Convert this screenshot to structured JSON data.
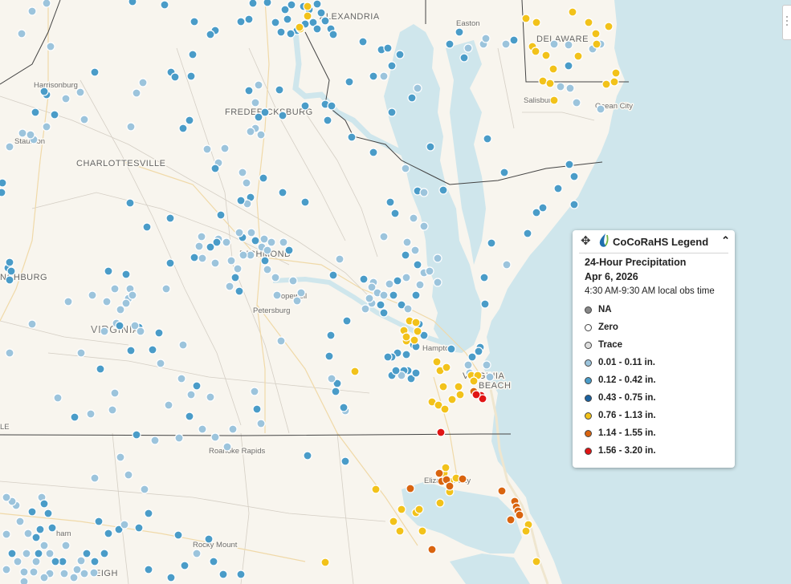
{
  "legend": {
    "title": "CoCoRaHS Legend",
    "subtitle": "24-Hour Precipitation",
    "date": "Apr 6, 2026",
    "obs_time": "4:30 AM-9:30 AM local obs time",
    "items": [
      {
        "label": "NA",
        "color": "#888888"
      },
      {
        "label": "Zero",
        "color": "#ffffff"
      },
      {
        "label": "Trace",
        "color": "#dddddd"
      },
      {
        "label": "0.01 - 0.11 in.",
        "color": "#9cc4dc"
      },
      {
        "label": "0.12 - 0.42 in.",
        "color": "#4a9cc8"
      },
      {
        "label": "0.43 - 0.75 in.",
        "color": "#1b62a0"
      },
      {
        "label": "0.76 - 1.13 in.",
        "color": "#f2c21a"
      },
      {
        "label": "1.14 - 1.55 in.",
        "color": "#d9640f"
      },
      {
        "label": "1.56 - 3.20 in.",
        "color": "#e01414"
      }
    ]
  },
  "map": {
    "water_color": "#cfe6ec",
    "land_color": "#f8f5ee",
    "labels": {
      "alexandria": "ALEXANDRIA",
      "delaware": "DELAWARE",
      "harrisonburg": "Harrisonburg",
      "salisbury": "Salisbury",
      "ocean_city": "Ocean City",
      "fredericksburg": "FREDERICKSBURG",
      "staunton": "Staunton",
      "charlottesville": "CHARLOTTESVILLE",
      "richmond": "RICHMOND",
      "lynchburg": "NCHBURG",
      "hopewell": "Hopewell",
      "petersburg": "Petersburg",
      "virginia": "VIRGINIA",
      "hampton": "Hampton",
      "virginia_beach_1": "VIRGINIA",
      "virginia_beach_2": "BEACH",
      "roanoke_rapids": "Roanoke Rapids",
      "elizabeth_city": "Elizabeth City",
      "rocky_mount": "Rocky Mount",
      "raleigh": "EIGH",
      "durham": "ham",
      "easton": "Easton",
      "edge_le": "LE"
    }
  },
  "stations": [
    [
      315,
      4,
      1
    ],
    [
      333,
      3,
      1
    ],
    [
      355,
      12,
      1
    ],
    [
      363,
      6,
      1
    ],
    [
      378,
      8,
      1
    ],
    [
      385,
      12,
      1
    ],
    [
      395,
      5,
      1
    ],
    [
      400,
      16,
      1
    ],
    [
      405,
      26,
      1
    ],
    [
      412,
      36,
      1
    ],
    [
      390,
      28,
      1
    ],
    [
      380,
      30,
      1
    ],
    [
      370,
      38,
      1
    ],
    [
      362,
      42,
      1
    ],
    [
      358,
      24,
      1
    ],
    [
      350,
      40,
      1
    ],
    [
      374,
      36,
      3
    ],
    [
      383,
      20,
      3
    ],
    [
      395,
      36,
      1
    ],
    [
      415,
      43,
      1
    ],
    [
      343,
      28,
      1
    ],
    [
      310,
      24,
      1
    ],
    [
      300,
      27,
      1
    ],
    [
      268,
      38,
      1
    ],
    [
      262,
      43,
      1
    ],
    [
      242,
      27,
      1
    ],
    [
      240,
      68,
      1
    ],
    [
      205,
      6,
      1
    ],
    [
      165,
      2,
      1
    ],
    [
      27,
      42,
      0
    ],
    [
      58,
      4,
      0
    ],
    [
      63,
      58,
      0
    ],
    [
      118,
      90,
      1
    ],
    [
      100,
      115,
      0
    ],
    [
      82,
      123,
      0
    ],
    [
      58,
      118,
      1
    ],
    [
      55,
      114,
      1
    ],
    [
      68,
      143,
      1
    ],
    [
      58,
      158,
      0
    ],
    [
      42,
      174,
      0
    ],
    [
      38,
      168,
      0
    ],
    [
      28,
      166,
      0
    ],
    [
      44,
      140,
      1
    ],
    [
      12,
      183,
      0
    ],
    [
      105,
      149,
      0
    ],
    [
      178,
      103,
      0
    ],
    [
      170,
      116,
      0
    ],
    [
      163,
      158,
      0
    ],
    [
      213,
      90,
      1
    ],
    [
      218,
      96,
      1
    ],
    [
      238,
      95,
      1
    ],
    [
      236,
      150,
      1
    ],
    [
      228,
      160,
      1
    ],
    [
      258,
      186,
      0
    ],
    [
      272,
      203,
      0
    ],
    [
      310,
      113,
      1
    ],
    [
      318,
      128,
      0
    ],
    [
      322,
      146,
      1
    ],
    [
      330,
      140,
      1
    ],
    [
      318,
      160,
      0
    ],
    [
      312,
      164,
      0
    ],
    [
      325,
      168,
      0
    ],
    [
      322,
      106,
      0
    ],
    [
      348,
      112,
      1
    ],
    [
      352,
      144,
      1
    ],
    [
      380,
      132,
      1
    ],
    [
      405,
      130,
      1
    ],
    [
      408,
      150,
      1
    ],
    [
      413,
      132,
      1
    ],
    [
      435,
      102,
      1
    ],
    [
      452,
      52,
      1
    ],
    [
      475,
      62,
      1
    ],
    [
      478,
      95,
      0
    ],
    [
      465,
      95,
      1
    ],
    [
      483,
      60,
      1
    ],
    [
      488,
      82,
      1
    ],
    [
      498,
      68,
      1
    ],
    [
      465,
      190,
      1
    ],
    [
      488,
      140,
      1
    ],
    [
      513,
      122,
      1
    ],
    [
      520,
      110,
      0
    ],
    [
      536,
      183,
      1
    ],
    [
      505,
      210,
      0
    ],
    [
      520,
      238,
      1
    ],
    [
      528,
      240,
      0
    ],
    [
      552,
      237,
      1
    ],
    [
      486,
      252,
      1
    ],
    [
      492,
      266,
      1
    ],
    [
      515,
      272,
      0
    ],
    [
      528,
      282,
      0
    ],
    [
      507,
      302,
      0
    ],
    [
      517,
      312,
      0
    ],
    [
      505,
      318,
      1
    ],
    [
      520,
      330,
      1
    ],
    [
      528,
      340,
      0
    ],
    [
      535,
      338,
      0
    ],
    [
      545,
      352,
      0
    ],
    [
      523,
      355,
      0
    ],
    [
      545,
      322,
      0
    ],
    [
      506,
      346,
      0
    ],
    [
      518,
      368,
      1
    ],
    [
      453,
      348,
      1
    ],
    [
      465,
      352,
      0
    ],
    [
      463,
      358,
      0
    ],
    [
      470,
      365,
      0
    ],
    [
      478,
      368,
      0
    ],
    [
      485,
      354,
      0
    ],
    [
      490,
      368,
      1
    ],
    [
      500,
      380,
      1
    ],
    [
      474,
      380,
      1
    ],
    [
      463,
      378,
      0
    ],
    [
      455,
      385,
      0
    ],
    [
      460,
      372,
      0
    ],
    [
      495,
      350,
      1
    ],
    [
      508,
      385,
      0
    ],
    [
      478,
      390,
      1
    ],
    [
      522,
      404,
      1
    ],
    [
      528,
      418,
      1
    ],
    [
      515,
      430,
      1
    ],
    [
      495,
      440,
      1
    ],
    [
      488,
      445,
      1
    ],
    [
      483,
      445,
      1
    ],
    [
      506,
      442,
      1
    ],
    [
      508,
      462,
      1
    ],
    [
      503,
      462,
      1
    ],
    [
      500,
      468,
      0
    ],
    [
      512,
      472,
      1
    ],
    [
      518,
      465,
      1
    ],
    [
      410,
      444,
      1
    ],
    [
      420,
      478,
      1
    ],
    [
      430,
      512,
      0
    ],
    [
      428,
      508,
      1
    ],
    [
      418,
      488,
      1
    ],
    [
      432,
      400,
      1
    ],
    [
      412,
      418,
      1
    ],
    [
      413,
      472,
      0
    ],
    [
      478,
      295,
      0
    ],
    [
      423,
      323,
      0
    ],
    [
      415,
      343,
      1
    ],
    [
      326,
      308,
      0
    ],
    [
      329,
      298,
      0
    ],
    [
      318,
      300,
      1
    ],
    [
      312,
      318,
      0
    ],
    [
      303,
      318,
      0
    ],
    [
      296,
      335,
      0
    ],
    [
      288,
      325,
      0
    ],
    [
      302,
      296,
      1
    ],
    [
      282,
      302,
      0
    ],
    [
      262,
      308,
      1
    ],
    [
      272,
      298,
      0
    ],
    [
      293,
      346,
      1
    ],
    [
      298,
      290,
      0
    ],
    [
      338,
      302,
      0
    ],
    [
      333,
      312,
      0
    ],
    [
      313,
      290,
      0
    ],
    [
      353,
      302,
      0
    ],
    [
      251,
      295,
      0
    ],
    [
      242,
      321,
      1
    ],
    [
      252,
      322,
      0
    ],
    [
      275,
      268,
      1
    ],
    [
      312,
      246,
      1
    ],
    [
      307,
      228,
      0
    ],
    [
      302,
      215,
      0
    ],
    [
      328,
      222,
      1
    ],
    [
      352,
      240,
      1
    ],
    [
      380,
      252,
      1
    ],
    [
      308,
      254,
      0
    ],
    [
      343,
      346,
      0
    ],
    [
      365,
      350,
      0
    ],
    [
      370,
      375,
      0
    ],
    [
      375,
      365,
      0
    ],
    [
      345,
      368,
      0
    ],
    [
      350,
      425,
      0
    ],
    [
      268,
      328,
      0
    ],
    [
      270,
      302,
      1
    ],
    [
      162,
      253,
      1
    ],
    [
      183,
      283,
      1
    ],
    [
      212,
      272,
      1
    ],
    [
      207,
      360,
      0
    ],
    [
      160,
      372,
      0
    ],
    [
      162,
      360,
      0
    ],
    [
      157,
      378,
      0
    ],
    [
      165,
      368,
      0
    ],
    [
      173,
      408,
      1
    ],
    [
      168,
      406,
      0
    ],
    [
      150,
      386,
      0
    ],
    [
      157,
      342,
      1
    ],
    [
      115,
      368,
      0
    ],
    [
      85,
      376,
      0
    ],
    [
      40,
      404,
      0
    ],
    [
      125,
      460,
      1
    ],
    [
      190,
      436,
      1
    ],
    [
      198,
      415,
      1
    ],
    [
      175,
      413,
      0
    ],
    [
      145,
      403,
      0
    ],
    [
      130,
      413,
      0
    ],
    [
      101,
      440,
      0
    ],
    [
      93,
      520,
      1
    ],
    [
      72,
      496,
      0
    ],
    [
      113,
      516,
      0
    ],
    [
      140,
      511,
      0
    ],
    [
      143,
      490,
      0
    ],
    [
      210,
      505,
      0
    ],
    [
      236,
      519,
      1
    ],
    [
      252,
      535,
      0
    ],
    [
      290,
      535,
      0
    ],
    [
      262,
      495,
      0
    ],
    [
      238,
      492,
      0
    ],
    [
      320,
      510,
      1
    ],
    [
      317,
      488,
      0
    ],
    [
      325,
      528,
      0
    ],
    [
      193,
      549,
      0
    ],
    [
      170,
      542,
      1
    ],
    [
      223,
      546,
      0
    ],
    [
      268,
      545,
      0
    ],
    [
      283,
      557,
      0
    ],
    [
      150,
      570,
      0
    ],
    [
      160,
      592,
      0
    ],
    [
      118,
      596,
      0
    ],
    [
      430,
      575,
      1
    ],
    [
      383,
      568,
      1
    ],
    [
      180,
      610,
      0
    ],
    [
      185,
      640,
      1
    ],
    [
      222,
      667,
      1
    ],
    [
      173,
      658,
      1
    ],
    [
      148,
      660,
      1
    ],
    [
      155,
      654,
      0
    ],
    [
      245,
      690,
      0
    ],
    [
      260,
      672,
      1
    ],
    [
      266,
      700,
      1
    ],
    [
      300,
      716,
      1
    ],
    [
      278,
      716,
      1
    ],
    [
      230,
      705,
      1
    ],
    [
      213,
      720,
      1
    ],
    [
      185,
      710,
      1
    ],
    [
      123,
      650,
      1
    ],
    [
      135,
      665,
      1
    ],
    [
      130,
      690,
      1
    ],
    [
      118,
      700,
      1
    ],
    [
      108,
      690,
      1
    ],
    [
      101,
      699,
      0
    ],
    [
      96,
      710,
      0
    ],
    [
      105,
      715,
      0
    ],
    [
      117,
      714,
      0
    ],
    [
      92,
      720,
      0
    ],
    [
      78,
      700,
      1
    ],
    [
      69,
      700,
      1
    ],
    [
      62,
      690,
      0
    ],
    [
      55,
      680,
      0
    ],
    [
      45,
      670,
      1
    ],
    [
      35,
      665,
      0
    ],
    [
      25,
      650,
      0
    ],
    [
      20,
      630,
      0
    ],
    [
      15,
      625,
      0
    ],
    [
      8,
      620,
      0
    ],
    [
      52,
      620,
      0
    ],
    [
      40,
      638,
      1
    ],
    [
      55,
      628,
      1
    ],
    [
      60,
      640,
      1
    ],
    [
      50,
      660,
      1
    ],
    [
      65,
      658,
      1
    ],
    [
      45,
      700,
      0
    ],
    [
      42,
      713,
      0
    ],
    [
      30,
      713,
      0
    ],
    [
      22,
      700,
      0
    ],
    [
      15,
      690,
      1
    ],
    [
      8,
      710,
      0
    ],
    [
      62,
      715,
      0
    ],
    [
      80,
      715,
      0
    ],
    [
      82,
      680,
      0
    ],
    [
      48,
      690,
      1
    ],
    [
      33,
      690,
      0
    ],
    [
      8,
      666,
      0
    ],
    [
      55,
      720,
      0
    ],
    [
      30,
      725,
      0
    ],
    [
      10,
      334,
      1
    ],
    [
      14,
      338,
      1
    ],
    [
      12,
      327,
      1
    ],
    [
      12,
      349,
      1
    ],
    [
      3,
      228,
      1
    ],
    [
      2,
      240,
      1
    ],
    [
      40,
      14,
      0
    ],
    [
      12,
      440,
      0
    ],
    [
      360,
      312,
      1
    ],
    [
      300,
      250,
      1
    ],
    [
      280,
      185,
      0
    ],
    [
      268,
      210,
      1
    ],
    [
      438,
      171,
      1
    ],
    [
      572,
      40,
      1
    ],
    [
      560,
      55,
      1
    ],
    [
      578,
      72,
      1
    ],
    [
      607,
      173,
      1
    ],
    [
      612,
      303,
      1
    ],
    [
      603,
      346,
      1
    ],
    [
      628,
      215,
      1
    ],
    [
      668,
      265,
      1
    ],
    [
      676,
      259,
      1
    ],
    [
      695,
      235,
      1
    ],
    [
      709,
      205,
      1
    ],
    [
      715,
      220,
      1
    ],
    [
      715,
      255,
      1
    ],
    [
      725,
      305,
      1
    ],
    [
      690,
      55,
      0
    ],
    [
      708,
      56,
      0
    ],
    [
      738,
      61,
      0
    ],
    [
      748,
      55,
      0
    ],
    [
      748,
      136,
      0
    ],
    [
      718,
      128,
      0
    ],
    [
      698,
      108,
      0
    ],
    [
      710,
      110,
      0
    ],
    [
      708,
      82,
      1
    ],
    [
      583,
      60,
      0
    ],
    [
      602,
      55,
      0
    ],
    [
      605,
      48,
      0
    ],
    [
      630,
      55,
      0
    ],
    [
      640,
      50,
      1
    ],
    [
      631,
      330,
      0
    ],
    [
      604,
      379,
      1
    ],
    [
      657,
      291,
      1
    ],
    [
      598,
      433,
      1
    ],
    [
      562,
      435,
      1
    ],
    [
      583,
      455,
      0
    ],
    [
      585,
      465,
      0
    ],
    [
      610,
      470,
      0
    ],
    [
      606,
      455,
      0
    ],
    [
      488,
      468,
      1
    ],
    [
      493,
      462,
      1
    ],
    [
      518,
      432,
      1
    ],
    [
      596,
      438,
      1
    ],
    [
      588,
      445,
      1
    ],
    [
      655,
      23,
      3
    ],
    [
      668,
      28,
      3
    ],
    [
      713,
      15,
      3
    ],
    [
      733,
      28,
      3
    ],
    [
      742,
      42,
      3
    ],
    [
      758,
      33,
      3
    ],
    [
      743,
      55,
      3
    ],
    [
      720,
      70,
      3
    ],
    [
      663,
      58,
      3
    ],
    [
      667,
      64,
      3
    ],
    [
      680,
      69,
      3
    ],
    [
      689,
      86,
      3
    ],
    [
      676,
      101,
      3
    ],
    [
      685,
      104,
      3
    ],
    [
      767,
      91,
      3
    ],
    [
      765,
      102,
      3
    ],
    [
      755,
      105,
      3
    ],
    [
      690,
      125,
      3
    ],
    [
      383,
      8,
      3
    ],
    [
      373,
      34,
      3
    ],
    [
      510,
      400,
      3
    ],
    [
      518,
      402,
      3
    ],
    [
      503,
      412,
      3
    ],
    [
      520,
      413,
      3
    ],
    [
      506,
      425,
      3
    ],
    [
      516,
      424,
      3
    ],
    [
      506,
      420,
      3
    ],
    [
      544,
      451,
      3
    ],
    [
      548,
      462,
      3
    ],
    [
      556,
      458,
      3
    ],
    [
      552,
      482,
      3
    ],
    [
      571,
      482,
      3
    ],
    [
      573,
      492,
      3
    ],
    [
      563,
      498,
      3
    ],
    [
      587,
      468,
      3
    ],
    [
      595,
      468,
      3
    ],
    [
      590,
      475,
      3
    ],
    [
      538,
      501,
      3
    ],
    [
      546,
      505,
      3
    ],
    [
      554,
      510,
      3
    ],
    [
      442,
      463,
      3
    ],
    [
      468,
      610,
      3
    ],
    [
      518,
      639,
      3
    ],
    [
      522,
      635,
      3
    ],
    [
      548,
      627,
      3
    ],
    [
      560,
      613,
      3
    ],
    [
      560,
      600,
      3
    ],
    [
      553,
      590,
      3
    ],
    [
      555,
      583,
      3
    ],
    [
      568,
      596,
      3
    ],
    [
      490,
      650,
      3
    ],
    [
      498,
      662,
      3
    ],
    [
      526,
      662,
      3
    ],
    [
      500,
      635,
      3
    ],
    [
      658,
      654,
      3
    ],
    [
      655,
      662,
      3
    ],
    [
      668,
      700,
      3
    ],
    [
      405,
      701,
      3
    ],
    [
      511,
      609,
      4
    ],
    [
      547,
      590,
      4
    ],
    [
      550,
      600,
      4
    ],
    [
      556,
      598,
      4
    ],
    [
      560,
      606,
      4
    ],
    [
      538,
      685,
      4
    ],
    [
      576,
      597,
      4
    ],
    [
      625,
      612,
      4
    ],
    [
      641,
      625,
      4
    ],
    [
      643,
      632,
      4
    ],
    [
      645,
      637,
      4
    ],
    [
      647,
      642,
      4
    ],
    [
      636,
      648,
      4
    ],
    [
      590,
      488,
      4
    ],
    [
      599,
      493,
      5
    ],
    [
      601,
      497,
      5
    ],
    [
      549,
      539,
      5
    ],
    [
      593,
      492,
      5
    ],
    [
      163,
      437,
      1
    ],
    [
      149,
      406,
      1
    ],
    [
      133,
      376,
      0
    ],
    [
      143,
      360,
      0
    ],
    [
      135,
      338,
      1
    ],
    [
      212,
      328,
      1
    ],
    [
      248,
      307,
      0
    ],
    [
      286,
      357,
      0
    ],
    [
      298,
      363,
      1
    ],
    [
      330,
      325,
      1
    ],
    [
      333,
      336,
      0
    ],
    [
      228,
      430,
      0
    ],
    [
      200,
      453,
      0
    ],
    [
      226,
      472,
      0
    ],
    [
      245,
      481,
      1
    ]
  ]
}
